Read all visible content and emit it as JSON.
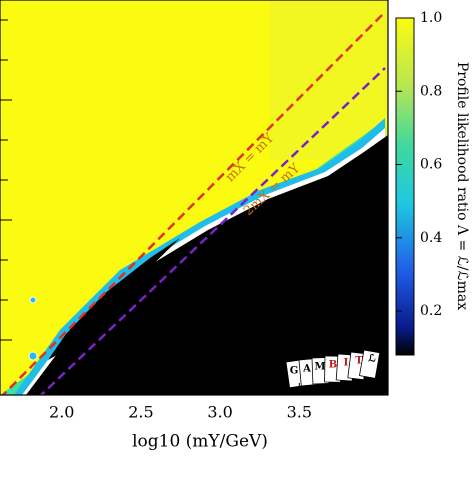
{
  "chart_data": {
    "type": "heatmap",
    "xlabel": "log10 (mY/GeV)",
    "xlim": [
      1.61,
      4.06
    ],
    "xticks": [
      {
        "value": 2,
        "label": "2.0"
      },
      {
        "value": 2.5,
        "label": "2.5"
      },
      {
        "value": 3,
        "label": "3.0"
      },
      {
        "value": 3.5,
        "label": "3.5"
      }
    ],
    "colorbar_label": "Profile likelihood ratio Λ = ℒ/ℒmax",
    "clim": [
      0.08,
      1.0
    ],
    "cticks": [
      0.2,
      0.4,
      0.6,
      0.8,
      {
        "value": 1,
        "label": "1.0"
      }
    ],
    "annotations": [
      "mX = mY",
      "2mX = mY"
    ],
    "logo": [
      "G",
      "A",
      "M",
      "B",
      "I",
      "T",
      "ℒ"
    ]
  }
}
